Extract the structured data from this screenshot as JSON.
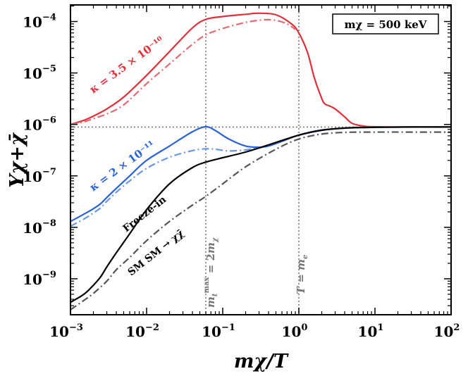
{
  "chart_data": {
    "type": "line",
    "x_scale": "log",
    "y_scale": "log",
    "xlim": [
      0.001,
      100
    ],
    "ylim": [
      2e-10,
      0.00021
    ],
    "xlabel": "mχ/T",
    "ylabel": "Yχ+χ̄",
    "x_ticks": [
      {
        "value": 0.001,
        "base": "10",
        "exp": "−3"
      },
      {
        "value": 0.01,
        "base": "10",
        "exp": "−2"
      },
      {
        "value": 0.1,
        "base": "10",
        "exp": "−1"
      },
      {
        "value": 1,
        "base": "10",
        "exp": "0"
      },
      {
        "value": 10,
        "base": "10",
        "exp": "1"
      },
      {
        "value": 100,
        "base": "10",
        "exp": "2"
      }
    ],
    "y_ticks": [
      {
        "value": 1e-09,
        "base": "10",
        "exp": "−9"
      },
      {
        "value": 1e-08,
        "base": "10",
        "exp": "−8"
      },
      {
        "value": 1e-07,
        "base": "10",
        "exp": "−7"
      },
      {
        "value": 1e-06,
        "base": "10",
        "exp": "−6"
      },
      {
        "value": 1e-05,
        "base": "10",
        "exp": "−5"
      },
      {
        "value": 0.0001,
        "base": "10",
        "exp": "−4"
      }
    ],
    "legend": "mχ = 500 keV",
    "series": [
      {
        "name": "κ = 3.5 × 10⁻¹⁰ (solid)",
        "color": "#e0303a",
        "style": "solid",
        "x": [
          0.001,
          0.0015,
          0.002,
          0.003,
          0.005,
          0.01,
          0.02,
          0.04,
          0.06,
          0.1,
          0.2,
          0.3,
          0.5,
          0.8,
          1.0,
          1.3,
          1.6,
          2.0,
          2.2,
          2.5,
          3.0,
          4.0,
          5.0,
          7.0,
          10,
          30,
          100
        ],
        "y": [
          1e-06,
          1.2e-06,
          1.45e-06,
          2e-06,
          3.4e-06,
          9e-06,
          2.6e-05,
          7.5e-05,
          0.00011,
          0.000125,
          0.000138,
          0.000145,
          0.000135,
          9e-05,
          6e-05,
          2.5e-05,
          8e-06,
          3.2e-06,
          2.5e-06,
          2.3e-06,
          2e-06,
          1.4e-06,
          1.05e-06,
          9.3e-07,
          9e-07,
          8.9e-07,
          8.9e-07
        ]
      },
      {
        "name": "κ = 3.5 × 10⁻¹⁰ (dash-dot)",
        "color": "#e46a72",
        "style": "dashdot",
        "x": [
          0.001,
          0.0015,
          0.002,
          0.003,
          0.005,
          0.01,
          0.02,
          0.04,
          0.06,
          0.1,
          0.2,
          0.35,
          0.5,
          0.7,
          0.9
        ],
        "y": [
          1e-06,
          1.12e-06,
          1.3e-06,
          1.6e-06,
          2.4e-06,
          6.2e-06,
          1.5e-05,
          3.6e-05,
          5.5e-05,
          7.3e-05,
          9.6e-05,
          0.000108,
          0.000105,
          9e-05,
          7e-05
        ]
      },
      {
        "name": "κ = 2 × 10⁻¹¹ (solid)",
        "color": "#2a63d8",
        "style": "solid",
        "x": [
          0.001,
          0.0015,
          0.002,
          0.0025,
          0.003,
          0.004,
          0.006,
          0.01,
          0.02,
          0.04,
          0.06,
          0.08,
          0.12,
          0.2,
          0.3,
          0.4,
          0.6,
          1.0,
          2.0,
          5.0,
          10,
          30,
          100
        ],
        "y": [
          1.3e-08,
          1.8e-08,
          2.3e-08,
          2.9e-08,
          3.8e-08,
          5.7e-08,
          1e-07,
          2e-07,
          3.8e-07,
          7.2e-07,
          9e-07,
          7.6e-07,
          5.2e-07,
          3.8e-07,
          3.6e-07,
          3.8e-07,
          4.7e-07,
          6.2e-07,
          7.8e-07,
          8.6e-07,
          8.8e-07,
          8.9e-07,
          8.9e-07
        ]
      },
      {
        "name": "κ = 2 × 10⁻¹¹ (dash-dot)",
        "color": "#6b97e6",
        "style": "dashdot",
        "x": [
          0.001,
          0.0015,
          0.002,
          0.0025,
          0.003,
          0.004,
          0.006,
          0.01,
          0.02,
          0.04,
          0.06,
          0.08,
          0.12,
          0.2,
          0.3,
          0.4
        ],
        "y": [
          1.05e-08,
          1.45e-08,
          1.9e-08,
          2.4e-08,
          3.2e-08,
          4.8e-08,
          8e-08,
          1.4e-07,
          2.3e-07,
          3.1e-07,
          3.35e-07,
          3.3e-07,
          3.05e-07,
          3.2e-07,
          3.5e-07,
          3.8e-07
        ]
      },
      {
        "name": "Freeze-in",
        "color": "#000000",
        "style": "solid",
        "x": [
          0.001,
          0.0015,
          0.002,
          0.0025,
          0.003,
          0.004,
          0.006,
          0.01,
          0.02,
          0.04,
          0.06,
          0.1,
          0.2,
          0.4,
          1.0,
          2.0,
          4.0,
          10,
          30,
          100
        ],
        "y": [
          3.5e-10,
          5e-10,
          7.5e-10,
          1.1e-09,
          1.7e-09,
          3.2e-09,
          7.5e-09,
          2.2e-08,
          7e-08,
          1.45e-07,
          1.85e-07,
          2.25e-07,
          2.9e-07,
          4e-07,
          6.2e-07,
          7.7e-07,
          8.5e-07,
          8.8e-07,
          8.9e-07,
          8.9e-07
        ]
      },
      {
        "name": "SM SM → χχ̄",
        "color": "#555555",
        "style": "dashdot",
        "x": [
          0.001,
          0.0015,
          0.002,
          0.003,
          0.004,
          0.006,
          0.01,
          0.02,
          0.04,
          0.06,
          0.1,
          0.2,
          0.5,
          1.0,
          2.0,
          4.0,
          10,
          30,
          100
        ],
        "y": [
          2.5e-10,
          3.8e-10,
          5.2e-10,
          9e-10,
          1.5e-09,
          2.6e-09,
          5.5e-09,
          1.3e-08,
          2.7e-08,
          4e-08,
          7e-08,
          1.5e-07,
          3.3e-07,
          5.2e-07,
          6.5e-07,
          7e-07,
          7.1e-07,
          7.1e-07,
          7.1e-07
        ]
      }
    ],
    "reference_lines": [
      {
        "orientation": "vertical",
        "value": 0.06,
        "label": "m_t^max = 2m_χ"
      },
      {
        "orientation": "vertical",
        "value": 1.0,
        "label": "T = m_e"
      },
      {
        "orientation": "horizontal",
        "value": 8.9e-07
      }
    ],
    "annotations": [
      {
        "text": "κ = 3.5 × 10⁻¹⁰",
        "color": "#e0303a"
      },
      {
        "text": "κ = 2 × 10⁻¹¹",
        "color": "#2a63d8"
      },
      {
        "text": "Freeze-in",
        "color": "#000000"
      },
      {
        "text": "SM SM → χχ̄",
        "color": "#000000"
      }
    ]
  }
}
